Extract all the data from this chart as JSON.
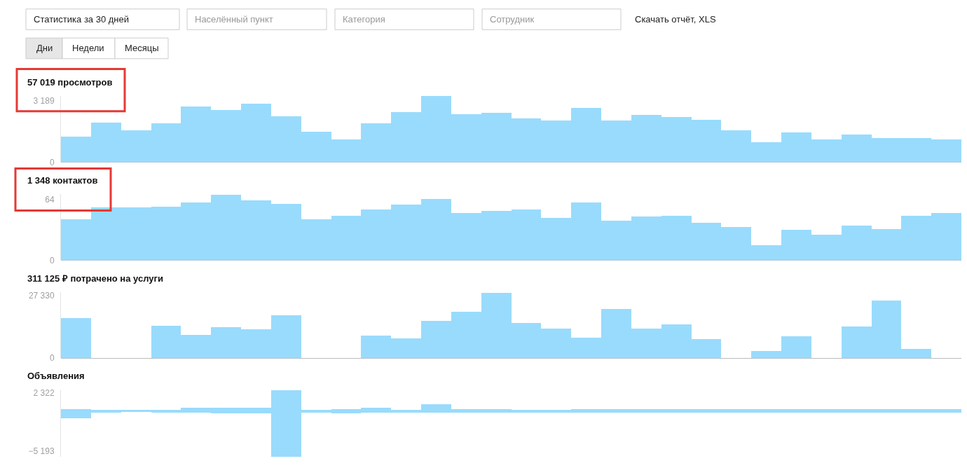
{
  "chart_data": [
    {
      "type": "other",
      "annotations": [
        "Статистика за 30 дней",
        "Населённый пункт",
        "Категория",
        "Сотрудник",
        "Скачать отчёт, XLS",
        "Дни",
        "Недели",
        "Месяцы"
      ]
    },
    {
      "type": "bar",
      "title": "57 019 просмотров",
      "categories": [
        null,
        null,
        null,
        null,
        null,
        null,
        null,
        null,
        null,
        null,
        null,
        null,
        null,
        null,
        null,
        null,
        null,
        null,
        null,
        null,
        null,
        null,
        null,
        null,
        null,
        null,
        null,
        null,
        null,
        null
      ],
      "color": "#99dbfc",
      "values": [
        1330,
        2080,
        1650,
        2010,
        2900,
        2720,
        3050,
        2400,
        1580,
        1180,
        2010,
        2620,
        3440,
        2510,
        2580,
        2290,
        2190,
        2830,
        2190,
        2470,
        2370,
        2220,
        1680,
        1040,
        1540,
        1180,
        1430,
        1250,
        1250,
        1180
      ],
      "ylim": [
        0,
        3450
      ],
      "yticks": [
        0,
        {
          "value": 3189,
          "label": "3 189"
        }
      ],
      "tick_labels": "y"
    },
    {
      "type": "bar",
      "title": "1 348 контактов",
      "categories": [
        null,
        null,
        null,
        null,
        null,
        null,
        null,
        null,
        null,
        null,
        null,
        null,
        null,
        null,
        null,
        null,
        null,
        null,
        null,
        null,
        null,
        null,
        null,
        null,
        null,
        null,
        null,
        null,
        null,
        null
      ],
      "color": "#99dbfc",
      "values": [
        43,
        56,
        56,
        57,
        61,
        69,
        63,
        60,
        43,
        47,
        54,
        59,
        65,
        50,
        52,
        54,
        45,
        61,
        42,
        46,
        47,
        40,
        35,
        16,
        32,
        27,
        37,
        33,
        47,
        50
      ],
      "ylim": [
        0,
        70
      ],
      "yticks": [
        0,
        64
      ],
      "tick_labels": "y"
    },
    {
      "type": "bar",
      "title": "311 125 ₽ потрачено на услуги",
      "categories": [
        null,
        null,
        null,
        null,
        null,
        null,
        null,
        null,
        null,
        null,
        null,
        null,
        null,
        null,
        null,
        null,
        null,
        null,
        null,
        null,
        null,
        null,
        null,
        null,
        null,
        null,
        null,
        null,
        null,
        null
      ],
      "color": "#99dbfc",
      "values": [
        17700,
        0,
        0,
        14400,
        10200,
        13800,
        12900,
        18900,
        0,
        0,
        9900,
        8700,
        16500,
        20400,
        28800,
        15600,
        13200,
        9000,
        21600,
        13200,
        15000,
        8400,
        0,
        3300,
        9600,
        0,
        14100,
        25200,
        4200,
        0
      ],
      "ylim": [
        0,
        29000
      ],
      "yticks": [
        0,
        {
          "value": 27330,
          "label": "27 330"
        }
      ],
      "tick_labels": "y"
    },
    {
      "type": "bar",
      "title": "Объявления",
      "categories": [
        null,
        null,
        null,
        null,
        null,
        null,
        null,
        null,
        null,
        null,
        null,
        null,
        null,
        null,
        null,
        null,
        null,
        null,
        null,
        null,
        null,
        null,
        null,
        null,
        null,
        null,
        null,
        null,
        null,
        null
      ],
      "color": "#99dbfc",
      "base": [
        -900,
        -200,
        -100,
        -200,
        -200,
        -300,
        -300,
        -5900,
        -200,
        -300,
        -200,
        -200,
        -200,
        -200,
        -200,
        -200,
        -200,
        -200,
        -200,
        -200,
        -200,
        -200,
        -200,
        -200,
        -200,
        -200,
        -200,
        -200,
        -200,
        -200
      ],
      "values": [
        1200,
        400,
        300,
        400,
        600,
        700,
        700,
        8600,
        400,
        600,
        600,
        400,
        1100,
        500,
        500,
        400,
        400,
        500,
        500,
        500,
        500,
        500,
        500,
        500,
        500,
        500,
        500,
        500,
        500,
        500
      ],
      "ylim": [
        -5950,
        2700
      ],
      "yticks": [
        {
          "value": 2322,
          "label": "2 322"
        },
        {
          "value": -5193,
          "label": "−5 193"
        }
      ],
      "tick_labels": "y"
    }
  ]
}
